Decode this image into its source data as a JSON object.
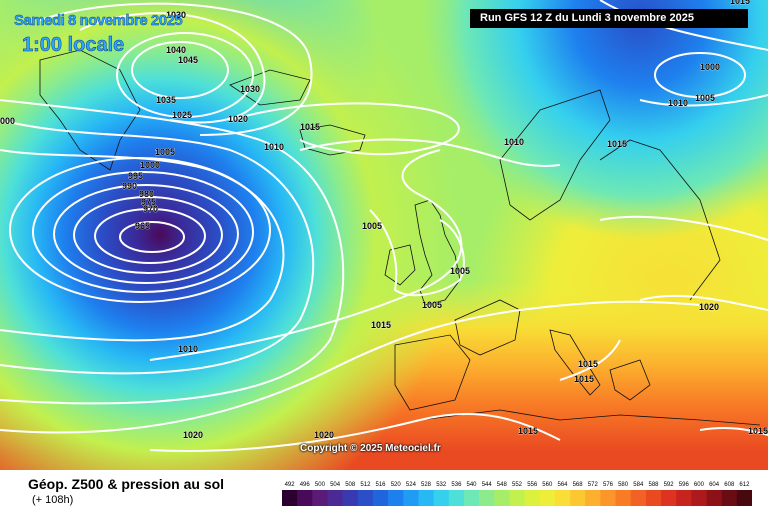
{
  "header": {
    "date_label": "Samedi 8 novembre 2025",
    "time_label": "1:00 locale",
    "run_label": "Run GFS 12 Z du Lundi 3 novembre 2025"
  },
  "map": {
    "copyright": "Copyright © 2025 Meteociel.fr",
    "isobar_labels": [
      {
        "id": "p1030a",
        "text": "1030"
      },
      {
        "id": "p1040",
        "text": "1040"
      },
      {
        "id": "p1045",
        "text": "1045"
      },
      {
        "id": "p1030b",
        "text": "1030"
      },
      {
        "id": "p1035",
        "text": "1035"
      },
      {
        "id": "p1025",
        "text": "1025"
      },
      {
        "id": "p1020a",
        "text": "1020"
      },
      {
        "id": "p1015a",
        "text": "1015"
      },
      {
        "id": "p1010a",
        "text": "1010"
      },
      {
        "id": "p1000a",
        "text": "000"
      },
      {
        "id": "p1005a",
        "text": "1005"
      },
      {
        "id": "p1000b",
        "text": "1000"
      },
      {
        "id": "p995",
        "text": "995"
      },
      {
        "id": "p990",
        "text": "990"
      },
      {
        "id": "p980",
        "text": "980"
      },
      {
        "id": "p975",
        "text": "975"
      },
      {
        "id": "p970",
        "text": "970"
      },
      {
        "id": "p965",
        "text": "965"
      },
      {
        "id": "p1005b",
        "text": "1005"
      },
      {
        "id": "p1005c",
        "text": "1005"
      },
      {
        "id": "p1005d",
        "text": "1005"
      },
      {
        "id": "p1015b",
        "text": "1015"
      },
      {
        "id": "p1010b",
        "text": "1010"
      },
      {
        "id": "p1020b",
        "text": "1020"
      },
      {
        "id": "p1020c",
        "text": "1020"
      },
      {
        "id": "p1010c",
        "text": "1010"
      },
      {
        "id": "p1015c",
        "text": "1015"
      },
      {
        "id": "p1000c",
        "text": "1000"
      },
      {
        "id": "p1010d",
        "text": "1010"
      },
      {
        "id": "p1005e",
        "text": "1005"
      },
      {
        "id": "p1015d",
        "text": "1015"
      },
      {
        "id": "p1020d",
        "text": "1020"
      },
      {
        "id": "p1015e",
        "text": "1015"
      },
      {
        "id": "p1015f",
        "text": "1015"
      },
      {
        "id": "p1015g",
        "text": "1015"
      },
      {
        "id": "p1015h",
        "text": "1015"
      }
    ]
  },
  "legend": {
    "title": "Géop. Z500 & pression au sol",
    "subtitle": "(+ 108h)",
    "ticks": [
      "492",
      "496",
      "500",
      "504",
      "508",
      "512",
      "516",
      "520",
      "524",
      "528",
      "532",
      "536",
      "540",
      "544",
      "548",
      "552",
      "556",
      "560",
      "564",
      "568",
      "572",
      "576",
      "580",
      "584",
      "588",
      "592",
      "596",
      "600",
      "604",
      "608",
      "612"
    ],
    "colors": [
      "#2a0030",
      "#4a0a5a",
      "#5a1a78",
      "#4b2a95",
      "#3a3ab0",
      "#2a4fc8",
      "#1f66dd",
      "#1e80ee",
      "#209cf5",
      "#27b8f5",
      "#35d0ee",
      "#4ee0d8",
      "#6ee8b4",
      "#8cec8c",
      "#a6ee68",
      "#c2f04e",
      "#dcf03e",
      "#eeee3a",
      "#f8de36",
      "#fcc832",
      "#fcb02e",
      "#fc962a",
      "#f87c26",
      "#f26224",
      "#ea4a22",
      "#dc3420",
      "#c8241e",
      "#ac1a1c",
      "#8c1218",
      "#6a0c14",
      "#480810"
    ]
  }
}
